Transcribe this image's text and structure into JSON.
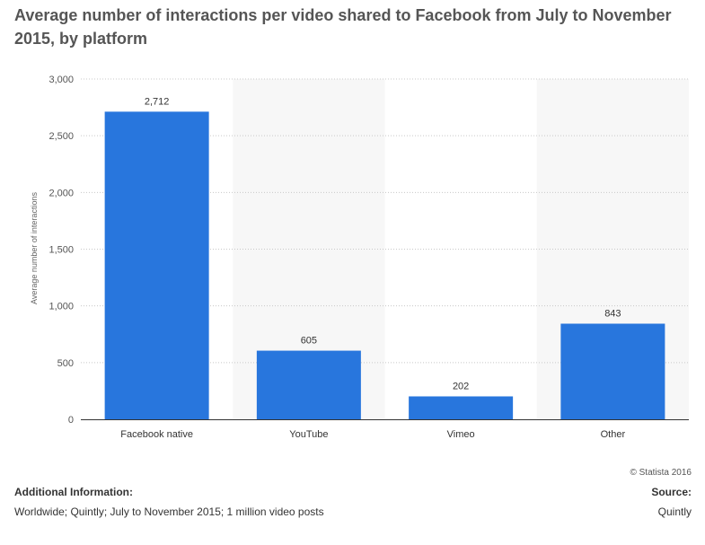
{
  "title": "Average number of interactions per video shared to Facebook from July to November 2015, by platform",
  "copyright": "© Statista 2016",
  "additional_info": {
    "heading": "Additional Information:",
    "text": "Worldwide; Quintly; July to November 2015; 1 million video posts"
  },
  "source": {
    "heading": "Source:",
    "text": "Quintly"
  },
  "colors": {
    "bar": "#2876dd",
    "band": "#f7f7f7",
    "grid": "#c8c8c8",
    "axis": "#333333"
  },
  "chart_data": {
    "type": "bar",
    "title": "Average number of interactions per video shared to Facebook from July to November 2015, by platform",
    "xlabel": "",
    "ylabel": "Average number of interactions",
    "categories": [
      "Facebook native",
      "YouTube",
      "Vimeo",
      "Other"
    ],
    "values": [
      2712,
      605,
      202,
      843
    ],
    "value_labels": [
      "2,712",
      "605",
      "202",
      "843"
    ],
    "ylim": [
      0,
      3000
    ],
    "yticks": [
      0,
      500,
      1000,
      1500,
      2000,
      2500,
      3000
    ],
    "ytick_labels": [
      "0",
      "500",
      "1,000",
      "1,500",
      "2,000",
      "2,500",
      "3,000"
    ],
    "grid": true,
    "legend": "none"
  }
}
